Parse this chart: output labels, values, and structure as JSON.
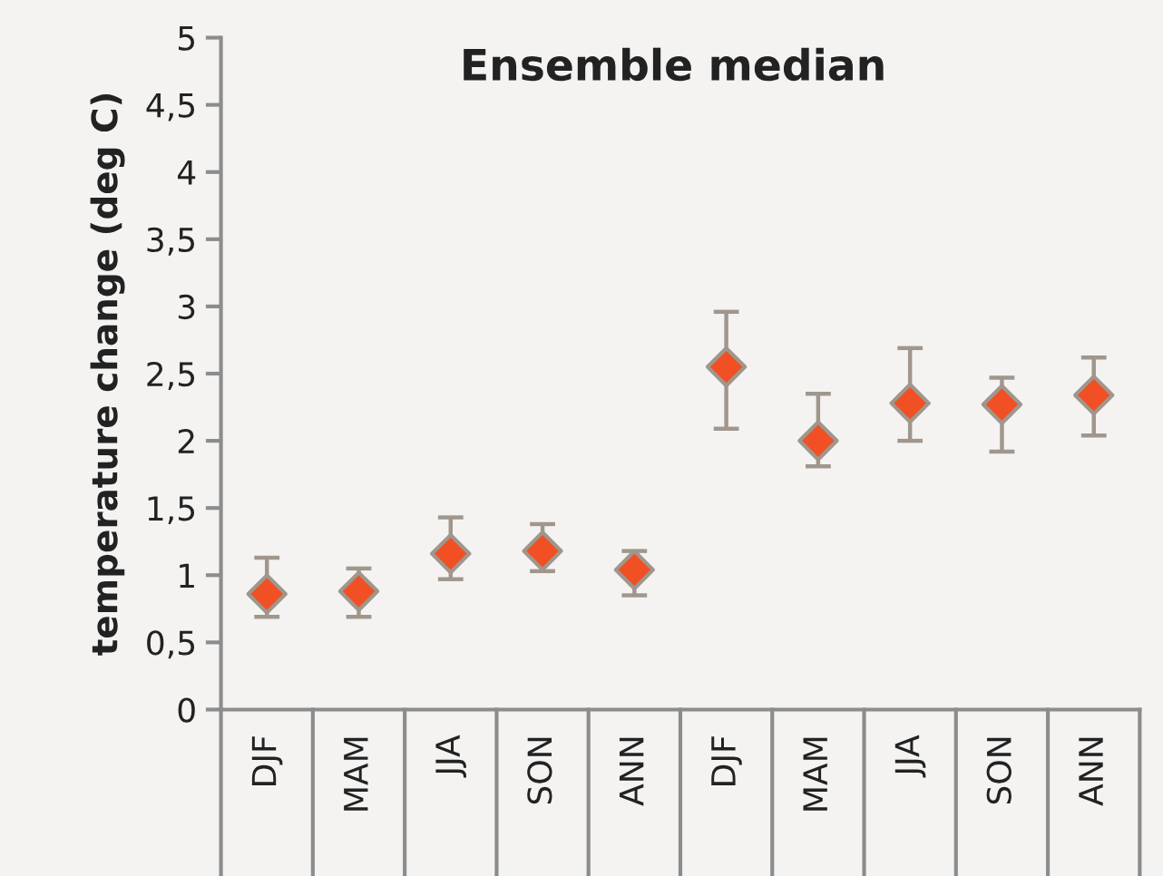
{
  "chart_data": {
    "type": "scatter",
    "title": "Ensemble median",
    "ylabel": "temperature change (deg C)",
    "categories": [
      "DJF",
      "MAM",
      "JJA",
      "SON",
      "ANN",
      "DJF",
      "MAM",
      "JJA",
      "SON",
      "ANN"
    ],
    "series": [
      {
        "color": "#f05023",
        "values": [
          0.86,
          0.88,
          1.16,
          1.18,
          1.04,
          2.55,
          2.0,
          2.28,
          2.27,
          2.34
        ],
        "errors": [
          [
            0.69,
            1.13
          ],
          [
            0.69,
            1.05
          ],
          [
            0.97,
            1.43
          ],
          [
            1.03,
            1.38
          ],
          [
            0.85,
            1.18
          ],
          [
            2.09,
            2.96
          ],
          [
            1.81,
            2.35
          ],
          [
            2.0,
            2.69
          ],
          [
            1.92,
            2.47
          ],
          [
            2.04,
            2.62
          ]
        ]
      }
    ],
    "ylim": [
      0,
      5
    ],
    "yticks": [
      0,
      {
        "value": 0.5,
        "label": "0,5"
      },
      1,
      {
        "value": 1.5,
        "label": "1,5"
      },
      2,
      {
        "value": 2.5,
        "label": "2,5"
      },
      3,
      {
        "value": 3.5,
        "label": "3,5"
      },
      4,
      {
        "value": 4.5,
        "label": "4,5"
      },
      5
    ],
    "marker": "diamond",
    "grid": false,
    "legend": false
  }
}
